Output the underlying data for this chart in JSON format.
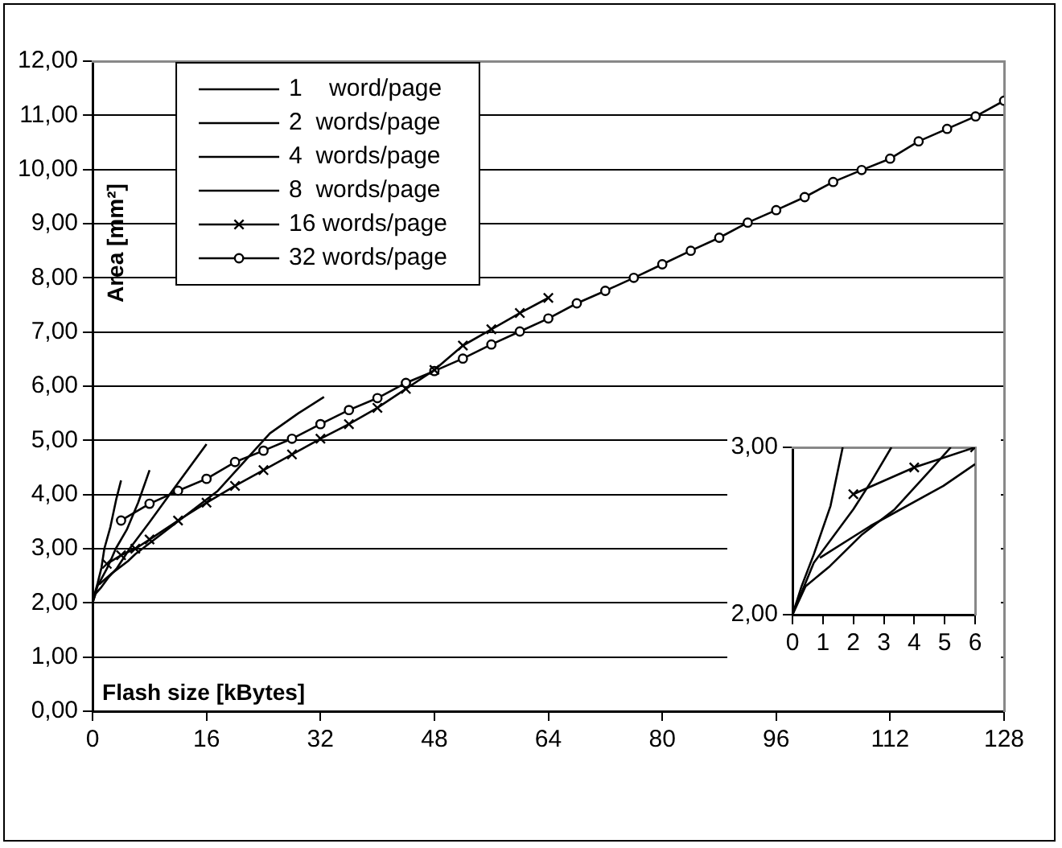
{
  "chart_data": [
    {
      "type": "line",
      "xlabel": "Flash size [kBytes]",
      "ylabel": "Area [mm²]",
      "xlim": [
        0,
        128
      ],
      "xticks": [
        0,
        16,
        32,
        48,
        64,
        80,
        96,
        112,
        128
      ],
      "ylim": [
        0,
        12
      ],
      "yticks": [
        {
          "value": 0,
          "label": "0,00"
        },
        {
          "value": 1,
          "label": "1,00"
        },
        {
          "value": 2,
          "label": "2,00"
        },
        {
          "value": 3,
          "label": "3,00"
        },
        {
          "value": 4,
          "label": "4,00"
        },
        {
          "value": 5,
          "label": "5,00"
        },
        {
          "value": 6,
          "label": "6,00"
        },
        {
          "value": 7,
          "label": "7,00"
        },
        {
          "value": 8,
          "label": "8,00"
        },
        {
          "value": 9,
          "label": "9,00"
        },
        {
          "value": 10,
          "label": "10,00"
        },
        {
          "value": 11,
          "label": "11,00"
        },
        {
          "value": 12,
          "label": "12,00"
        }
      ],
      "grid": "y",
      "legend": "top left",
      "line_style": "solid",
      "series": [
        {
          "name": "1    word/page",
          "color": "#000000",
          "marker": "none",
          "x": [
            0,
            0.3,
            0.7,
            1.25,
            1.65,
            2.5,
            3.3,
            4
          ],
          "values": [
            2.0,
            2.17,
            2.36,
            2.65,
            3.0,
            3.4,
            3.9,
            4.26
          ]
        },
        {
          "name": "2  words/page",
          "color": "#000000",
          "marker": "none",
          "x": [
            0,
            0.7,
            2,
            2.6,
            3.25,
            4.8,
            6.4,
            8
          ],
          "values": [
            2.0,
            2.31,
            2.63,
            2.8,
            3.0,
            3.35,
            3.85,
            4.45
          ]
        },
        {
          "name": "4  words/page",
          "color": "#000000",
          "marker": "none",
          "x": [
            0,
            0.43,
            1.23,
            2.29,
            3.36,
            4.56,
            5.2,
            8,
            11.2,
            16
          ],
          "values": [
            2.0,
            2.17,
            2.29,
            2.48,
            2.63,
            2.87,
            3.0,
            3.49,
            4.07,
            4.93
          ]
        },
        {
          "name": "8  words/page",
          "color": "#000000",
          "marker": "none",
          "x": [
            0.9,
            2.56,
            4.96,
            6,
            17.6,
            24.9,
            28.9,
            32.5
          ],
          "values": [
            2.34,
            2.53,
            2.77,
            2.9,
            4.07,
            5.13,
            5.5,
            5.8
          ]
        },
        {
          "name": "16 words/page",
          "color": "#000000",
          "marker": "cross",
          "x": [
            2,
            4,
            6,
            8,
            12,
            16,
            20,
            24,
            28,
            32,
            36,
            40,
            44,
            48,
            52,
            56,
            60,
            64
          ],
          "values": [
            2.72,
            2.88,
            3.0,
            3.17,
            3.52,
            3.85,
            4.16,
            4.45,
            4.74,
            5.03,
            5.3,
            5.6,
            5.95,
            6.3,
            6.75,
            7.05,
            7.35,
            7.63
          ]
        },
        {
          "name": "32 words/page",
          "color": "#000000",
          "marker": "circle",
          "x": [
            4,
            8,
            12,
            16,
            20,
            24,
            28,
            32,
            36,
            40,
            44,
            48,
            52,
            56,
            60,
            64,
            68,
            72,
            76,
            80,
            84,
            88,
            92,
            96,
            100,
            104,
            108,
            112,
            116,
            120,
            124,
            128
          ],
          "values": [
            3.52,
            3.83,
            4.07,
            4.29,
            4.6,
            4.81,
            5.03,
            5.3,
            5.56,
            5.78,
            6.06,
            6.28,
            6.51,
            6.77,
            7.01,
            7.25,
            7.53,
            7.76,
            8.0,
            8.25,
            8.5,
            8.74,
            9.02,
            9.25,
            9.49,
            9.77,
            9.99,
            10.2,
            10.52,
            10.75,
            10.98,
            11.27
          ]
        }
      ]
    },
    {
      "type": "line",
      "xlim": [
        0,
        6
      ],
      "xticks": [
        0,
        1,
        2,
        3,
        4,
        5,
        6
      ],
      "ylim": [
        2,
        3
      ],
      "yticks": [
        {
          "value": 2,
          "label": "2,00"
        },
        {
          "value": 3,
          "label": "3,00"
        }
      ],
      "line_style": "solid",
      "series": [
        {
          "color": "#000000",
          "marker": "none",
          "x": [
            0,
            0.3,
            0.7,
            1.25,
            1.65
          ],
          "values": [
            2.0,
            2.17,
            2.36,
            2.65,
            3.0
          ]
        },
        {
          "color": "#000000",
          "marker": "none",
          "x": [
            0,
            0.7,
            2,
            2.6,
            3.25
          ],
          "values": [
            2.0,
            2.31,
            2.63,
            2.8,
            3.0
          ]
        },
        {
          "color": "#000000",
          "marker": "none",
          "x": [
            0,
            0.43,
            1.23,
            2.29,
            3.36,
            4.56,
            5.2
          ],
          "values": [
            2.0,
            2.17,
            2.29,
            2.48,
            2.63,
            2.87,
            3.0
          ]
        },
        {
          "color": "#000000",
          "marker": "none",
          "x": [
            0.9,
            2.56,
            4.96,
            6
          ],
          "values": [
            2.34,
            2.53,
            2.77,
            2.9
          ]
        },
        {
          "color": "#000000",
          "marker": "cross",
          "x": [
            2,
            4,
            6
          ],
          "values": [
            2.72,
            2.88,
            3.0
          ]
        }
      ]
    }
  ]
}
